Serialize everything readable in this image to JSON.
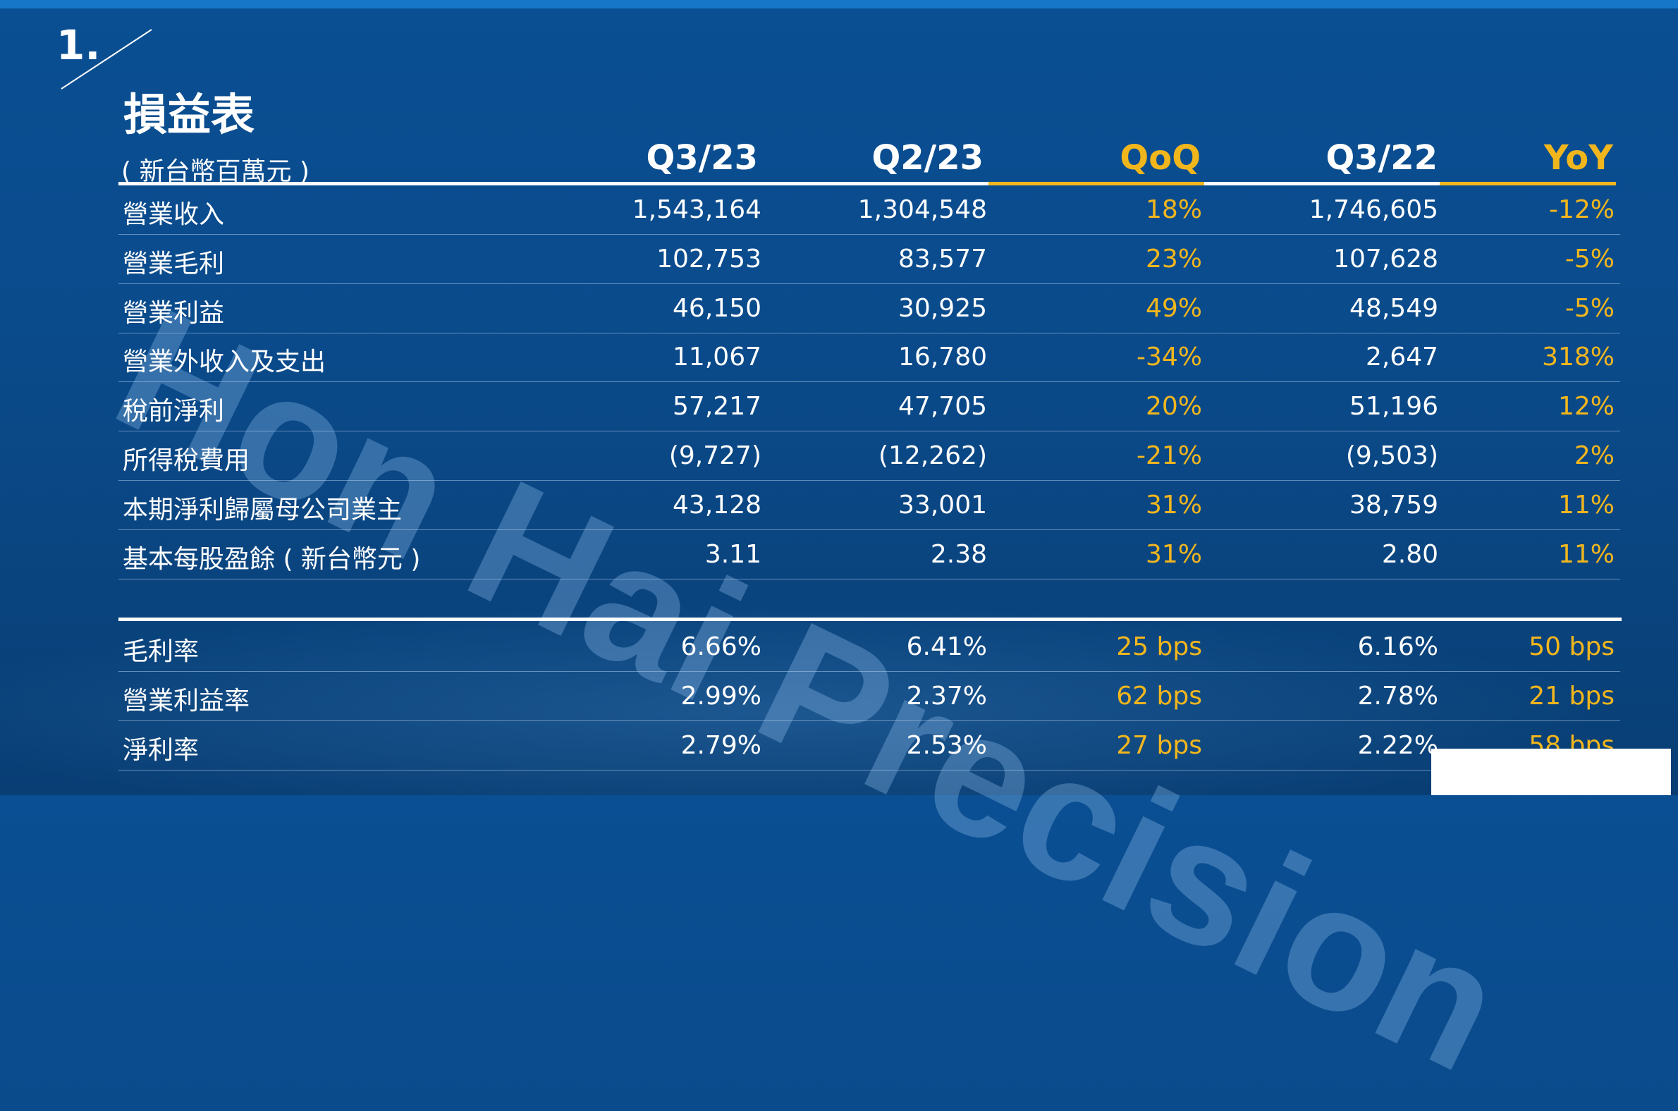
{
  "section_number": "1.",
  "title": "損益表",
  "unit": "( 新台幣百萬元 )",
  "watermark": "Hon Hai Precision",
  "columns": [
    "Q3/23",
    "Q2/23",
    "QoQ",
    "Q3/22",
    "YoY"
  ],
  "rows": [
    {
      "label": "營業收入",
      "values": [
        "1,543,164",
        "1,304,548",
        "18%",
        "1,746,605",
        "-12%"
      ]
    },
    {
      "label": "營業毛利",
      "values": [
        "102,753",
        "83,577",
        "23%",
        "107,628",
        "-5%"
      ]
    },
    {
      "label": "營業利益",
      "values": [
        "46,150",
        "30,925",
        "49%",
        "48,549",
        "-5%"
      ]
    },
    {
      "label": "營業外收入及支出",
      "values": [
        "11,067",
        "16,780",
        "-34%",
        "2,647",
        "318%"
      ]
    },
    {
      "label": "稅前淨利",
      "values": [
        "57,217",
        "47,705",
        "20%",
        "51,196",
        "12%"
      ]
    },
    {
      "label": "所得稅費用",
      "values": [
        "(9,727)",
        "(12,262)",
        "-21%",
        "(9,503)",
        "2%"
      ]
    },
    {
      "label": "本期淨利歸屬母公司業主",
      "values": [
        "43,128",
        "33,001",
        "31%",
        "38,759",
        "11%"
      ]
    },
    {
      "label": "基本每股盈餘 ( 新台幣元 )",
      "values": [
        "3.11",
        "2.38",
        "31%",
        "2.80",
        "11%"
      ]
    }
  ],
  "ratio_rows": [
    {
      "label": "毛利率",
      "values": [
        "6.66%",
        "6.41%",
        "25 bps",
        "6.16%",
        "50 bps"
      ]
    },
    {
      "label": "營業利益率",
      "values": [
        "2.99%",
        "2.37%",
        "62 bps",
        "2.78%",
        "21 bps"
      ]
    },
    {
      "label": "淨利率",
      "values": [
        "2.79%",
        "2.53%",
        "27 bps",
        "2.22%",
        "58 bps"
      ]
    }
  ],
  "colors": {
    "accent": "#f2b61d",
    "background": "#0a4b8c",
    "topbar": "#1676c7"
  }
}
